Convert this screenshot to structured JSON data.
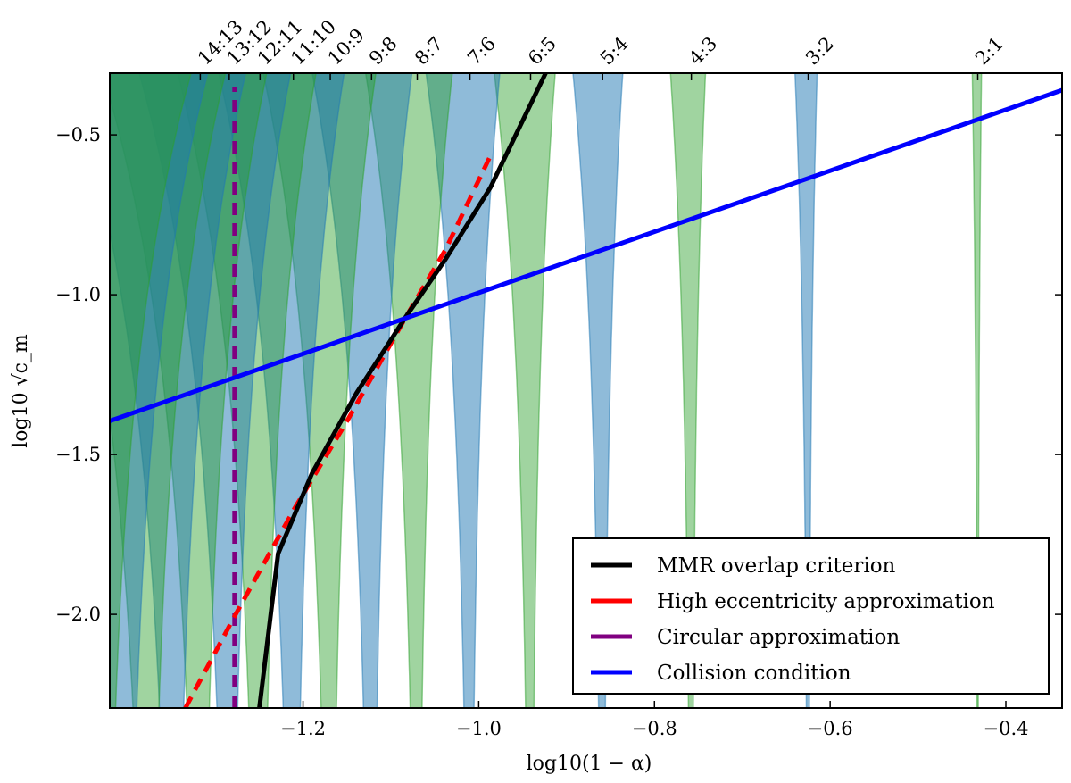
{
  "chart_data": {
    "type": "area",
    "xlabel": "log10(1 − α)",
    "ylabel": "log10 √c_m",
    "xlim": [
      -1.42,
      -0.336
    ],
    "ylim": [
      -2.293,
      -0.307
    ],
    "xticks": [
      -1.2,
      -1.0,
      -0.8,
      -0.6,
      -0.4
    ],
    "xtick_labels": [
      "−1.2",
      "−1.0",
      "−0.8",
      "−0.6",
      "−0.4"
    ],
    "yticks": [
      -0.5,
      -1.0,
      -1.5,
      -2.0
    ],
    "ytick_labels": [
      "−0.5",
      "−1.0",
      "−1.5",
      "−2.0"
    ],
    "colors": {
      "green": "#2ca02c",
      "blue": "#1f77b4",
      "mmr": "#000000",
      "high_ecc": "#ff0000",
      "circular": "#800080",
      "collision": "#0000ff"
    },
    "resonances": [
      {
        "label": "2:1",
        "center": -0.432,
        "halfwidth_top": 0.005,
        "color": "green"
      },
      {
        "label": "3:2",
        "center": -0.625,
        "halfwidth_top": 0.012,
        "color": "blue"
      },
      {
        "label": "4:3",
        "center": -0.758,
        "halfwidth_top": 0.019,
        "color": "green"
      },
      {
        "label": "5:4",
        "center": -0.859,
        "halfwidth_top": 0.027,
        "color": "blue"
      },
      {
        "label": "6:5",
        "center": -0.941,
        "halfwidth_top": 0.033,
        "color": "green"
      },
      {
        "label": "7:6",
        "center": -1.01,
        "halfwidth_top": 0.04,
        "color": "blue"
      },
      {
        "label": "8:7",
        "center": -1.07,
        "halfwidth_top": 0.047,
        "color": "green"
      },
      {
        "label": "9:8",
        "center": -1.122,
        "halfwidth_top": 0.054,
        "color": "blue"
      },
      {
        "label": "10:9",
        "center": -1.169,
        "halfwidth_top": 0.061,
        "color": "green"
      },
      {
        "label": "11:10",
        "center": -1.211,
        "halfwidth_top": 0.068,
        "color": "blue"
      },
      {
        "label": "12:11",
        "center": -1.249,
        "halfwidth_top": 0.075,
        "color": "green"
      },
      {
        "label": "13:12",
        "center": -1.284,
        "halfwidth_top": 0.082,
        "color": "blue"
      },
      {
        "label": "14:13",
        "center": -1.317,
        "halfwidth_top": 0.089,
        "color": "green"
      },
      {
        "label": "",
        "center": -1.347,
        "halfwidth_top": 0.096,
        "color": "blue"
      },
      {
        "label": "",
        "center": -1.376,
        "halfwidth_top": 0.103,
        "color": "green"
      },
      {
        "label": "",
        "center": -1.402,
        "halfwidth_top": 0.11,
        "color": "blue"
      },
      {
        "label": "",
        "center": -1.427,
        "halfwidth_top": 0.117,
        "color": "green"
      }
    ],
    "series": [
      {
        "name": "MMR overlap criterion",
        "color": "mmr",
        "dash": false,
        "x": [
          -1.2497,
          -1.2284,
          -1.1898,
          -1.139,
          -1.0832,
          -1.0376,
          -0.9868,
          -0.9239
        ],
        "y": [
          -2.293,
          -1.81,
          -1.559,
          -1.307,
          -1.07,
          -0.888,
          -0.665,
          -0.307
        ]
      },
      {
        "name": "High eccentricity approximation",
        "color": "high_ecc",
        "dash": true,
        "x": [
          -1.334,
          -1.278,
          -1.21,
          -1.149,
          -1.109,
          -1.083,
          -1.038,
          -0.987
        ],
        "y": [
          -2.293,
          -2.006,
          -1.67,
          -1.391,
          -1.196,
          -1.07,
          -0.86,
          -0.567
        ]
      },
      {
        "name": "Circular approximation",
        "color": "circular",
        "dash": true,
        "x": [
          -1.278,
          -1.278
        ],
        "y": [
          -2.293,
          -0.35
        ]
      },
      {
        "name": "Collision condition",
        "color": "collision",
        "dash": false,
        "x": [
          -1.42,
          -0.336
        ],
        "y": [
          -1.395,
          -0.36
        ]
      }
    ],
    "legend_position": "bottom-right"
  }
}
